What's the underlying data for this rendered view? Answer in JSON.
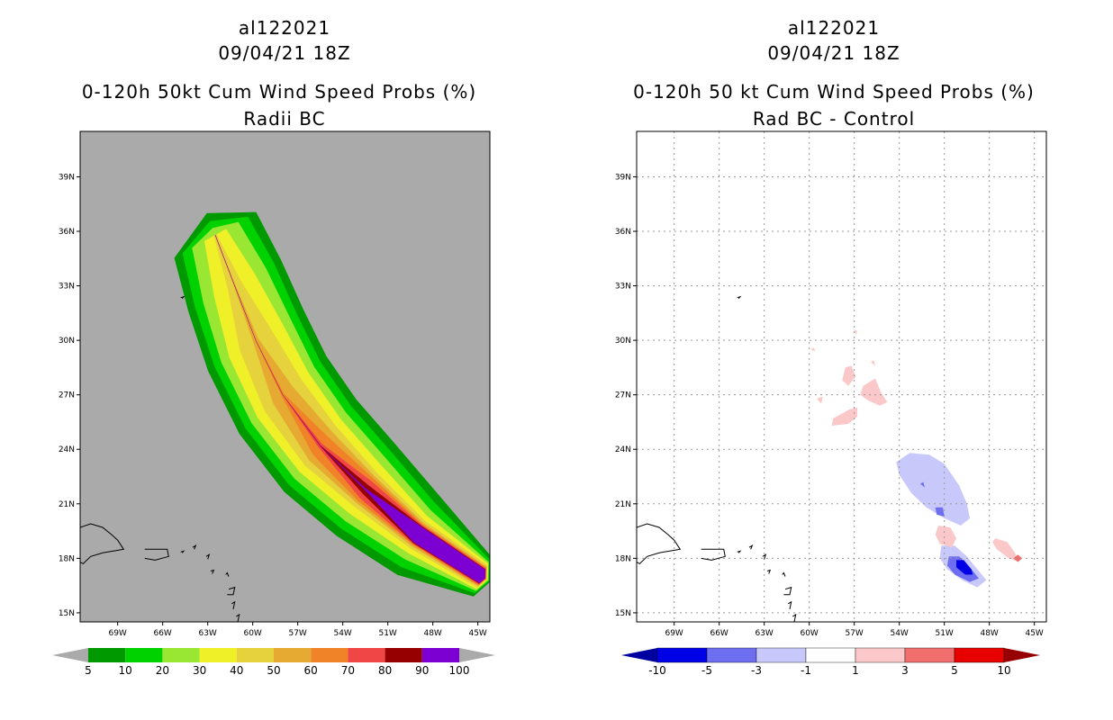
{
  "left_panel": {
    "title_line1": "al122021",
    "title_line2": "09/04/21 18Z",
    "title_line3": "0-120h 50kt Cum Wind Speed Probs (%)",
    "title_line4": "Radii BC",
    "background_color": "#aaaaaa"
  },
  "right_panel": {
    "title_line1": "al122021",
    "title_line2": "09/04/21 18Z",
    "title_line3": "0-120h 50 kt Cum Wind Speed Probs (%)",
    "title_line4": "Rad BC - Control",
    "background_color": "#ffffff"
  },
  "chart_data": [
    {
      "type": "heatmap",
      "name": "left-probability-map",
      "x_ticks": [
        "69W",
        "66W",
        "63W",
        "60W",
        "57W",
        "54W",
        "51W",
        "48W",
        "45W"
      ],
      "x_tick_values": [
        -69,
        -66,
        -63,
        -60,
        -57,
        -54,
        -51,
        -48,
        -45
      ],
      "y_ticks": [
        "15N",
        "18N",
        "21N",
        "24N",
        "27N",
        "30N",
        "33N",
        "36N",
        "39N"
      ],
      "y_tick_values": [
        15,
        18,
        21,
        24,
        27,
        30,
        33,
        36,
        39
      ],
      "xlim": [
        -71.5,
        -44.2
      ],
      "ylim": [
        14.5,
        41.5
      ],
      "grid": false,
      "colorbar": {
        "levels": [
          "5",
          "10",
          "20",
          "30",
          "40",
          "50",
          "60",
          "70",
          "80",
          "90",
          "100"
        ],
        "colors": [
          "#009900",
          "#00d200",
          "#99e633",
          "#f0f028",
          "#e6d23c",
          "#e6aa32",
          "#f08228",
          "#f04646",
          "#960000",
          "#7d00d2"
        ],
        "extend_colors": [
          "#aaaaaa",
          "#aaaaaa"
        ]
      },
      "track_axis": [
        [
          -44.7,
          17
        ],
        [
          -49,
          19.3
        ],
        [
          -52.5,
          21.8
        ],
        [
          -55.5,
          24.2
        ],
        [
          -58,
          27
        ],
        [
          -59.8,
          30
        ],
        [
          -61.2,
          33
        ],
        [
          -62.5,
          35.8
        ]
      ],
      "bands": [
        {
          "threshold": 5,
          "color": "#009900",
          "widths": [
            1.25,
            2.6,
            3.2,
            3.5,
            3.6,
            3.6,
            3.4,
            3.0
          ],
          "end_ext": 2.2
        },
        {
          "threshold": 10,
          "color": "#00d200",
          "widths": [
            1.05,
            2.1,
            2.7,
            3.0,
            3.1,
            3.1,
            2.9,
            2.4
          ],
          "end_ext": 1.4
        },
        {
          "threshold": 20,
          "color": "#99e633",
          "widths": [
            0.9,
            1.6,
            2.2,
            2.5,
            2.6,
            2.6,
            2.3,
            1.7
          ],
          "end_ext": 0.7
        },
        {
          "threshold": 30,
          "color": "#f0f028",
          "widths": [
            0.8,
            1.2,
            1.7,
            2.0,
            2.1,
            2.0,
            1.5,
            0.8
          ],
          "end_ext": 0.0
        },
        {
          "threshold": 40,
          "color": "#e6d23c",
          "widths": [
            0.7,
            0.9,
            1.2,
            1.5,
            1.5,
            1.2,
            0.5,
            0.1
          ],
          "end_ext": -0.8
        },
        {
          "threshold": 50,
          "color": "#e6aa32",
          "widths": [
            0.6,
            0.75,
            0.95,
            1.1,
            0.8,
            0.2,
            0.05,
            0.02
          ],
          "end_ext": -1.4
        },
        {
          "threshold": 60,
          "color": "#f08228",
          "widths": [
            0.55,
            0.65,
            0.8,
            0.7,
            0.1,
            0.02,
            0.01,
            0.01
          ],
          "end_ext": -2.2
        },
        {
          "threshold": 70,
          "color": "#f04646",
          "widths": [
            0.5,
            0.6,
            0.6,
            0.15,
            0.01,
            0.01,
            0.01,
            0.01
          ],
          "end_ext": -3.3
        },
        {
          "threshold": 80,
          "color": "#960000",
          "widths": [
            0.45,
            0.55,
            0.3,
            0.02,
            0.01,
            0.01,
            0.01,
            0.01
          ],
          "end_ext": -4.2
        },
        {
          "threshold": 90,
          "color": "#7d00d2",
          "widths": [
            0.42,
            0.5,
            0.05,
            0.01,
            0.01,
            0.01,
            0.01,
            0.01
          ],
          "end_ext": -4.8
        }
      ]
    },
    {
      "type": "heatmap",
      "name": "right-difference-map",
      "x_ticks": [
        "69W",
        "66W",
        "63W",
        "60W",
        "57W",
        "54W",
        "51W",
        "48W",
        "45W"
      ],
      "x_tick_values": [
        -69,
        -66,
        -63,
        -60,
        -57,
        -54,
        -51,
        -48,
        -45
      ],
      "y_ticks": [
        "15N",
        "18N",
        "21N",
        "24N",
        "27N",
        "30N",
        "33N",
        "36N",
        "39N"
      ],
      "y_tick_values": [
        15,
        18,
        21,
        24,
        27,
        30,
        33,
        36,
        39
      ],
      "xlim": [
        -71.5,
        -44.2
      ],
      "ylim": [
        14.5,
        41.5
      ],
      "grid": true,
      "colorbar": {
        "levels": [
          "-10",
          "-5",
          "-3",
          "-1",
          "1",
          "3",
          "5",
          "10"
        ],
        "colors": [
          "#0000e6",
          "#6e6ef0",
          "#c8c8fa",
          "#ffffff",
          "#fac8c8",
          "#f06e6e",
          "#e60000"
        ],
        "extend_colors": [
          "#0000a0",
          "#960000"
        ]
      },
      "regions": [
        {
          "value": -2,
          "color": "#c8c8fa",
          "points": [
            [
              -53.3,
              23.8
            ],
            [
              -52,
              23.7
            ],
            [
              -51,
              23.2
            ],
            [
              -50,
              22
            ],
            [
              -49.5,
              21
            ],
            [
              -49.3,
              20.2
            ],
            [
              -49.9,
              19.8
            ],
            [
              -51,
              20.2
            ],
            [
              -52.2,
              20.8
            ],
            [
              -53.2,
              21.6
            ],
            [
              -54,
              22.6
            ],
            [
              -54.2,
              23.3
            ]
          ]
        },
        {
          "value": -2,
          "color": "#c8c8fa",
          "points": [
            [
              -51.2,
              18.7
            ],
            [
              -50.3,
              18.7
            ],
            [
              -49.5,
              18.1
            ],
            [
              -48.7,
              17.3
            ],
            [
              -48.2,
              16.8
            ],
            [
              -48.8,
              16.4
            ],
            [
              -49.8,
              16.8
            ],
            [
              -50.8,
              17.4
            ],
            [
              -51.3,
              18
            ]
          ]
        },
        {
          "value": -4,
          "color": "#6e6ef0",
          "points": [
            [
              -50.7,
              18.1
            ],
            [
              -50,
              18.1
            ],
            [
              -49.3,
              17.5
            ],
            [
              -48.7,
              16.9
            ],
            [
              -49.3,
              16.7
            ],
            [
              -50.3,
              17.1
            ],
            [
              -50.8,
              17.6
            ]
          ]
        },
        {
          "value": -8,
          "color": "#0000e6",
          "points": [
            [
              -50.2,
              17.9
            ],
            [
              -49.7,
              17.9
            ],
            [
              -49.2,
              17.4
            ],
            [
              -49.1,
              17.1
            ],
            [
              -49.6,
              17.1
            ],
            [
              -50.2,
              17.5
            ]
          ]
        },
        {
          "value": -4,
          "color": "#6e6ef0",
          "points": [
            [
              -51.6,
              20.8
            ],
            [
              -51.1,
              20.8
            ],
            [
              -51,
              20.3
            ],
            [
              -51.5,
              20.4
            ]
          ]
        },
        {
          "value": -4,
          "color": "#6e6ef0",
          "points": [
            [
              -52.6,
              22.1
            ],
            [
              -52.4,
              22.2
            ],
            [
              -52.3,
              21.9
            ]
          ]
        },
        {
          "value": 2,
          "color": "#fac8c8",
          "points": [
            [
              -51.4,
              19.8
            ],
            [
              -50.6,
              19.7
            ],
            [
              -50.2,
              19.1
            ],
            [
              -50.5,
              18.6
            ],
            [
              -51.3,
              18.8
            ],
            [
              -51.6,
              19.3
            ]
          ]
        },
        {
          "value": 2,
          "color": "#fac8c8",
          "points": [
            [
              -47.6,
              19.1
            ],
            [
              -46.8,
              18.9
            ],
            [
              -46.3,
              18.3
            ],
            [
              -46,
              17.8
            ],
            [
              -46.7,
              18
            ],
            [
              -47.5,
              18.5
            ],
            [
              -47.8,
              18.9
            ]
          ]
        },
        {
          "value": 4,
          "color": "#f06e6e",
          "points": [
            [
              -46.1,
              18.2
            ],
            [
              -45.8,
              18.0
            ],
            [
              -46.1,
              17.8
            ],
            [
              -46.4,
              18.0
            ]
          ]
        },
        {
          "value": 2,
          "color": "#fac8c8",
          "points": [
            [
              -56.4,
              27.5
            ],
            [
              -55.6,
              27.9
            ],
            [
              -55.2,
              27.1
            ],
            [
              -54.8,
              26.6
            ],
            [
              -55.3,
              26.4
            ],
            [
              -56.1,
              26.7
            ],
            [
              -56.6,
              27
            ]
          ]
        },
        {
          "value": 2,
          "color": "#fac8c8",
          "points": [
            [
              -57.6,
              28.5
            ],
            [
              -57.2,
              28.6
            ],
            [
              -56.9,
              28
            ],
            [
              -57.4,
              27.5
            ],
            [
              -57.8,
              27.8
            ]
          ]
        },
        {
          "value": 2,
          "color": "#fac8c8",
          "points": [
            [
              -58.4,
              25.7
            ],
            [
              -57.3,
              26.2
            ],
            [
              -56.8,
              26.3
            ],
            [
              -56.8,
              25.8
            ],
            [
              -57.4,
              25.4
            ],
            [
              -58.5,
              25.3
            ]
          ]
        },
        {
          "value": 2,
          "color": "#fac8c8",
          "points": [
            [
              -59.5,
              26.8
            ],
            [
              -59.1,
              26.9
            ],
            [
              -59.2,
              26.5
            ]
          ]
        },
        {
          "value": 2,
          "color": "#fac8c8",
          "points": [
            [
              -57,
              30.6
            ],
            [
              -56.8,
              30.5
            ],
            [
              -56.9,
              30.3
            ]
          ]
        },
        {
          "value": 2,
          "color": "#fac8c8",
          "points": [
            [
              -59.9,
              29.5
            ],
            [
              -59.7,
              29.6
            ],
            [
              -59.6,
              29.4
            ]
          ]
        },
        {
          "value": 2,
          "color": "#fac8c8",
          "points": [
            [
              -55.9,
              28.8
            ],
            [
              -55.7,
              28.9
            ],
            [
              -55.6,
              28.6
            ]
          ]
        }
      ]
    }
  ]
}
